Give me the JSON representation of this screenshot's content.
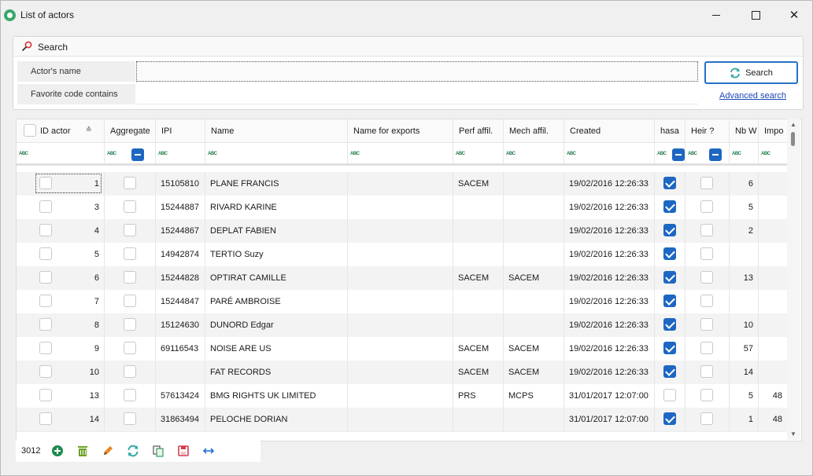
{
  "window": {
    "title": "List of actors"
  },
  "search": {
    "header_label": "Search",
    "fields": [
      {
        "label": "Actor's name",
        "value": ""
      },
      {
        "label": "Favorite code contains",
        "value": ""
      }
    ],
    "button_label": "Search",
    "advanced_link": "Advanced search"
  },
  "grid": {
    "columns": [
      "ID actor",
      "Aggregate",
      "IPI",
      "Name",
      "Name for exports",
      "Perf affil.",
      "Mech affil.",
      "Created",
      "hasa",
      "Heir ?",
      "Nb W",
      "Impo"
    ],
    "filter_marker": "ABC",
    "rows": [
      {
        "id": "1",
        "aggregate": false,
        "ipi": "15105810",
        "name": "PLANE FRANCIS",
        "export_name": "",
        "perf": "SACEM",
        "mech": "",
        "created": "19/02/2016 12:26:33",
        "hasa": true,
        "heir": false,
        "nbw": "6",
        "impo": ""
      },
      {
        "id": "3",
        "aggregate": false,
        "ipi": "15244887",
        "name": "RIVARD KARINE",
        "export_name": "",
        "perf": "",
        "mech": "",
        "created": "19/02/2016 12:26:33",
        "hasa": true,
        "heir": false,
        "nbw": "5",
        "impo": ""
      },
      {
        "id": "4",
        "aggregate": false,
        "ipi": "15244867",
        "name": "DEPLAT FABIEN",
        "export_name": "",
        "perf": "",
        "mech": "",
        "created": "19/02/2016 12:26:33",
        "hasa": true,
        "heir": false,
        "nbw": "2",
        "impo": ""
      },
      {
        "id": "5",
        "aggregate": false,
        "ipi": "14942874",
        "name": "TERTIO Suzy",
        "export_name": "",
        "perf": "",
        "mech": "",
        "created": "19/02/2016 12:26:33",
        "hasa": true,
        "heir": false,
        "nbw": "",
        "impo": ""
      },
      {
        "id": "6",
        "aggregate": false,
        "ipi": "15244828",
        "name": "OPTIRAT CAMILLE",
        "export_name": "",
        "perf": "SACEM",
        "mech": "SACEM",
        "created": "19/02/2016 12:26:33",
        "hasa": true,
        "heir": false,
        "nbw": "13",
        "impo": ""
      },
      {
        "id": "7",
        "aggregate": false,
        "ipi": "15244847",
        "name": "PARÉ AMBROISE",
        "export_name": "",
        "perf": "",
        "mech": "",
        "created": "19/02/2016 12:26:33",
        "hasa": true,
        "heir": false,
        "nbw": "",
        "impo": ""
      },
      {
        "id": "8",
        "aggregate": false,
        "ipi": "15124630",
        "name": "DUNORD Edgar",
        "export_name": "",
        "perf": "",
        "mech": "",
        "created": "19/02/2016 12:26:33",
        "hasa": true,
        "heir": false,
        "nbw": "10",
        "impo": ""
      },
      {
        "id": "9",
        "aggregate": false,
        "ipi": "69116543",
        "name": "NOISE ARE US",
        "export_name": "",
        "perf": "SACEM",
        "mech": "SACEM",
        "created": "19/02/2016 12:26:33",
        "hasa": true,
        "heir": false,
        "nbw": "57",
        "impo": ""
      },
      {
        "id": "10",
        "aggregate": false,
        "ipi": "",
        "name": "FAT RECORDS",
        "export_name": "",
        "perf": "SACEM",
        "mech": "SACEM",
        "created": "19/02/2016 12:26:33",
        "hasa": true,
        "heir": false,
        "nbw": "14",
        "impo": ""
      },
      {
        "id": "13",
        "aggregate": false,
        "ipi": "57613424",
        "name": "BMG RIGHTS UK LIMITED",
        "export_name": "",
        "perf": "PRS",
        "mech": "MCPS",
        "created": "31/01/2017 12:07:00",
        "hasa": false,
        "heir": false,
        "nbw": "5",
        "impo": "48"
      },
      {
        "id": "14",
        "aggregate": false,
        "ipi": "31863494",
        "name": "PELOCHE DORIAN",
        "export_name": "",
        "perf": "",
        "mech": "",
        "created": "31/01/2017 12:07:00",
        "hasa": true,
        "heir": false,
        "nbw": "1",
        "impo": "48"
      }
    ]
  },
  "footer": {
    "count": "3012"
  },
  "icons": [
    "app-icon",
    "search-icon",
    "refresh-icon",
    "add-icon",
    "trash-icon",
    "edit-icon",
    "sync-icon",
    "copy-icon",
    "save-icon",
    "resize-icon"
  ],
  "colors": {
    "accent": "#1d67c2",
    "link": "#1b46b5",
    "add": "#1c8a4c",
    "trash": "#6aa321",
    "edit": "#e8861e",
    "sync": "#31a6a0",
    "save": "#d33b4b",
    "resize": "#2a6ed6"
  }
}
